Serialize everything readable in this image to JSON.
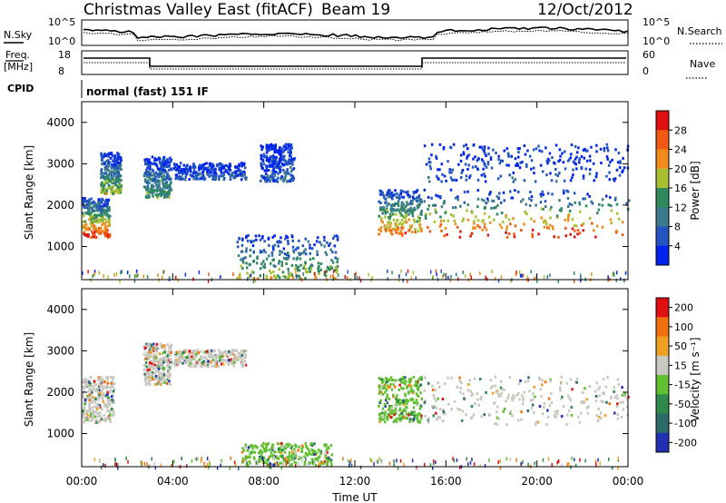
{
  "header": {
    "station": "Christmas Valley East (fitACF)",
    "beam": "Beam 19",
    "date": "12/Oct/2012"
  },
  "params_panel": {
    "nsky_label": "N.Sky",
    "nsky_ticks": [
      "10^5",
      "10^0"
    ],
    "nsearch_label": "N.Search",
    "nsearch_ticks": [
      "10^5",
      "10^0"
    ],
    "freq_label": "Freq.",
    "freq_unit": "[MHz]",
    "freq_ticks": [
      "18",
      "8"
    ],
    "nave_label": "Nave",
    "nave_ticks": [
      "60",
      "0"
    ],
    "cpid_label": "CPID",
    "cpid_value": "normal (fast) 151 IF"
  },
  "chart_data": [
    {
      "type": "heatmap",
      "name": "power",
      "ylabel": "Slant Range [km]",
      "yticks": [
        "1000",
        "2000",
        "3000",
        "4000"
      ],
      "ylim": [
        200,
        4500
      ],
      "xlim": [
        0,
        24
      ],
      "colorbar": {
        "label": "Power [dB]",
        "ticks": [
          "4",
          "8",
          "12",
          "16",
          "20",
          "24",
          "28"
        ],
        "colors": [
          "#0022ee",
          "#2255c0",
          "#3a7a8a",
          "#2d8a5a",
          "#a8c030",
          "#f08c1c",
          "#f05a14",
          "#e01010"
        ]
      },
      "regions": [
        {
          "t0": 0.0,
          "t1": 1.2,
          "r0": 1250,
          "r1": 2200,
          "level": 7
        },
        {
          "t0": 0.8,
          "t1": 1.7,
          "r0": 2300,
          "r1": 3300,
          "level": 4
        },
        {
          "t0": 2.7,
          "t1": 3.9,
          "r0": 2200,
          "r1": 3200,
          "level": 3
        },
        {
          "t0": 4.0,
          "t1": 7.2,
          "r0": 2650,
          "r1": 3050,
          "level": 1
        },
        {
          "t0": 7.8,
          "t1": 9.3,
          "r0": 2600,
          "r1": 3500,
          "level": 1
        },
        {
          "t0": 6.8,
          "t1": 11.2,
          "r0": 250,
          "r1": 1300,
          "level": 4
        },
        {
          "t0": 13.0,
          "t1": 14.9,
          "r0": 1300,
          "r1": 2400,
          "level": 6
        },
        {
          "t0": 15.0,
          "t1": 24.0,
          "r0": 1250,
          "r1": 2400,
          "level": 7
        },
        {
          "t0": 15.0,
          "t1": 24.0,
          "r0": 2600,
          "r1": 3500,
          "level": 1
        }
      ]
    },
    {
      "type": "heatmap",
      "name": "velocity",
      "xlabel": "Time UT",
      "ylabel": "Slant Range [km]",
      "xticks": [
        "00:00",
        "04:00",
        "08:00",
        "12:00",
        "16:00",
        "20:00",
        "00:00"
      ],
      "yticks": [
        "1000",
        "2000",
        "3000",
        "4000"
      ],
      "ylim": [
        200,
        4500
      ],
      "xlim": [
        0,
        24
      ],
      "colorbar": {
        "label": "Velocity [m s⁻¹]",
        "ticks": [
          "200",
          "100",
          "50",
          "15",
          "-15",
          "-50",
          "-100",
          "-200"
        ],
        "colors": [
          "#2030b0",
          "#2d6a6a",
          "#2d8a4a",
          "#60c030",
          "#c8c8c0",
          "#f0a020",
          "#f07010",
          "#e01010"
        ]
      },
      "regions": [
        {
          "t0": 0.0,
          "t1": 1.4,
          "r0": 1300,
          "r1": 2400,
          "level": 4
        },
        {
          "t0": 2.7,
          "t1": 3.9,
          "r0": 2200,
          "r1": 3200,
          "level": 4
        },
        {
          "t0": 4.0,
          "t1": 7.2,
          "r0": 2650,
          "r1": 3050,
          "level": 4
        },
        {
          "t0": 7.0,
          "t1": 11.0,
          "r0": 250,
          "r1": 800,
          "level": 3
        },
        {
          "t0": 13.0,
          "t1": 14.9,
          "r0": 1300,
          "r1": 2400,
          "level": 3
        },
        {
          "t0": 15.0,
          "t1": 24.0,
          "r0": 1250,
          "r1": 2400,
          "level": 4
        }
      ]
    }
  ]
}
